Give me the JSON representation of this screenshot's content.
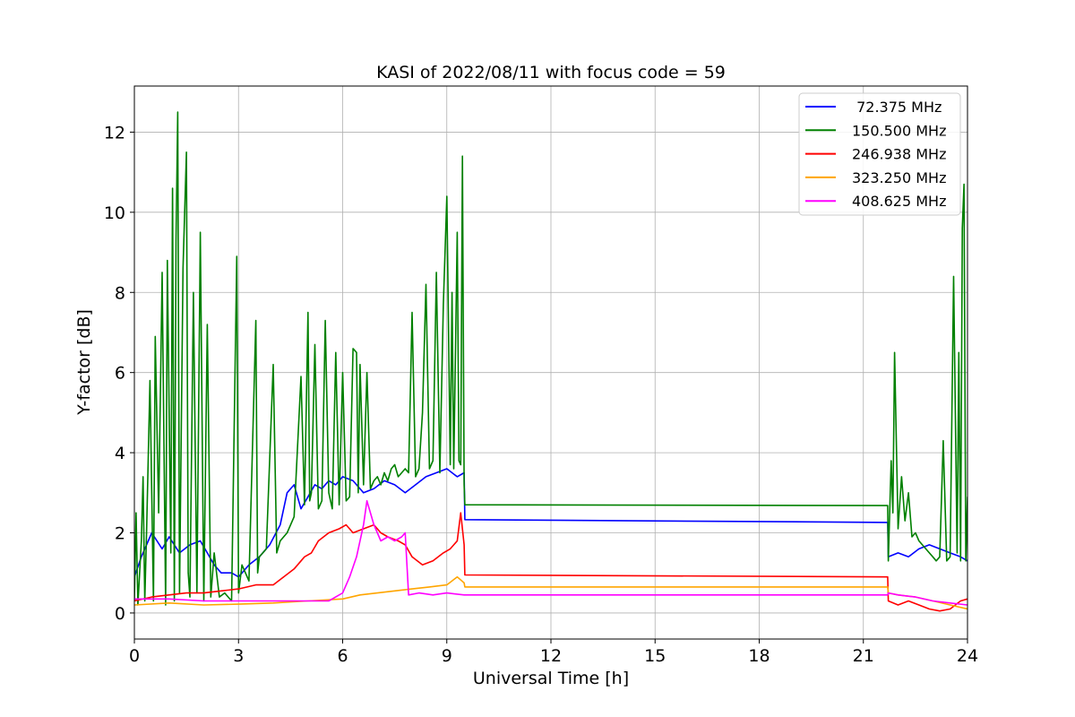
{
  "chart_data": {
    "type": "line",
    "title": "KASI of 2022/08/11 with focus code = 59",
    "xlabel": "Universal Time [h]",
    "ylabel": "Y-factor [dB]",
    "xlim": [
      0,
      24
    ],
    "ylim": [
      -0.65,
      13.15
    ],
    "xticks": [
      0,
      3,
      6,
      9,
      12,
      15,
      18,
      21,
      24
    ],
    "yticks": [
      0,
      2,
      4,
      6,
      8,
      10,
      12
    ],
    "grid": true,
    "legend_position": "top-right",
    "series": [
      {
        "name": "72.375 MHz",
        "legend_label": " 72.375 MHz",
        "color": "#0000ff",
        "x": [
          0,
          0.2,
          0.5,
          0.8,
          1.0,
          1.3,
          1.6,
          1.9,
          2.1,
          2.3,
          2.5,
          2.8,
          3.0,
          3.3,
          3.6,
          3.9,
          4.2,
          4.4,
          4.6,
          4.8,
          5.0,
          5.2,
          5.4,
          5.6,
          5.8,
          6.0,
          6.3,
          6.6,
          6.9,
          7.2,
          7.5,
          7.8,
          8.1,
          8.4,
          8.7,
          9.0,
          9.3,
          9.5,
          9.52,
          21.7,
          21.72,
          22.0,
          22.3,
          22.6,
          22.9,
          23.2,
          23.5,
          23.8,
          24.0
        ],
        "y": [
          0.9,
          1.4,
          2.0,
          1.6,
          1.9,
          1.5,
          1.7,
          1.8,
          1.5,
          1.2,
          1.0,
          1.0,
          0.9,
          1.2,
          1.4,
          1.7,
          2.2,
          3.0,
          3.2,
          2.6,
          2.9,
          3.2,
          3.1,
          3.3,
          3.2,
          3.4,
          3.3,
          3.0,
          3.1,
          3.3,
          3.2,
          3.0,
          3.2,
          3.4,
          3.5,
          3.6,
          3.4,
          3.5,
          2.33,
          2.26,
          1.4,
          1.5,
          1.4,
          1.6,
          1.7,
          1.6,
          1.5,
          1.4,
          1.3
        ]
      },
      {
        "name": "150.500 MHz",
        "legend_label": "150.500 MHz",
        "color": "#008000",
        "x": [
          0,
          0.05,
          0.1,
          0.2,
          0.25,
          0.3,
          0.35,
          0.45,
          0.55,
          0.6,
          0.7,
          0.8,
          0.9,
          0.95,
          1.05,
          1.1,
          1.15,
          1.2,
          1.25,
          1.3,
          1.4,
          1.5,
          1.55,
          1.6,
          1.7,
          1.8,
          1.9,
          2.0,
          2.1,
          2.2,
          2.3,
          2.45,
          2.6,
          2.8,
          2.95,
          3.0,
          3.1,
          3.3,
          3.5,
          3.55,
          3.6,
          3.8,
          4.0,
          4.1,
          4.2,
          4.4,
          4.6,
          4.8,
          4.9,
          5.0,
          5.05,
          5.1,
          5.2,
          5.3,
          5.4,
          5.5,
          5.6,
          5.7,
          5.8,
          5.9,
          6.0,
          6.1,
          6.2,
          6.3,
          6.4,
          6.45,
          6.5,
          6.6,
          6.7,
          6.8,
          6.9,
          7.0,
          7.1,
          7.2,
          7.3,
          7.4,
          7.5,
          7.6,
          7.7,
          7.8,
          7.9,
          8.0,
          8.1,
          8.2,
          8.3,
          8.4,
          8.5,
          8.6,
          8.7,
          8.8,
          8.9,
          9.0,
          9.1,
          9.15,
          9.2,
          9.3,
          9.35,
          9.4,
          9.45,
          9.5,
          9.52,
          21.7,
          21.72,
          21.8,
          21.85,
          21.9,
          22.0,
          22.1,
          22.2,
          22.3,
          22.4,
          22.5,
          22.6,
          22.7,
          22.8,
          22.9,
          23.0,
          23.1,
          23.2,
          23.3,
          23.4,
          23.5,
          23.6,
          23.7,
          23.75,
          23.8,
          23.85,
          23.9,
          23.95,
          24.0
        ],
        "y": [
          0.3,
          2.5,
          0.2,
          1.8,
          3.4,
          0.3,
          2.0,
          5.8,
          0.3,
          6.9,
          2.5,
          8.5,
          0.2,
          8.8,
          1.5,
          10.6,
          0.3,
          9.3,
          12.5,
          0.5,
          8.6,
          11.5,
          1.0,
          0.4,
          8.0,
          0.5,
          9.5,
          0.3,
          7.2,
          0.4,
          1.5,
          0.4,
          0.5,
          0.3,
          8.9,
          0.5,
          1.2,
          0.8,
          7.3,
          1.0,
          1.4,
          1.6,
          6.2,
          1.5,
          1.8,
          2.0,
          2.4,
          5.9,
          2.7,
          7.5,
          2.8,
          3.0,
          6.7,
          2.6,
          2.8,
          7.3,
          3.0,
          2.6,
          6.5,
          2.7,
          6.0,
          2.8,
          2.9,
          6.6,
          6.5,
          3.0,
          6.2,
          3.2,
          6.0,
          3.1,
          3.3,
          3.4,
          3.2,
          3.5,
          3.3,
          3.6,
          3.7,
          3.4,
          3.5,
          3.6,
          3.5,
          7.5,
          3.4,
          3.6,
          5.0,
          8.2,
          3.6,
          3.8,
          8.5,
          3.5,
          7.7,
          10.4,
          3.7,
          8.0,
          3.6,
          9.5,
          3.8,
          3.7,
          11.4,
          3.2,
          2.7,
          2.68,
          1.3,
          3.8,
          2.5,
          6.5,
          2.1,
          3.4,
          2.3,
          3.0,
          1.9,
          2.0,
          1.8,
          1.7,
          1.6,
          1.5,
          1.4,
          1.3,
          1.4,
          4.3,
          1.3,
          1.4,
          8.4,
          1.5,
          6.5,
          1.3,
          9.6,
          10.7,
          1.3,
          2.9
        ]
      },
      {
        "name": "246.938 MHz",
        "legend_label": "246.938 MHz",
        "color": "#ff0000",
        "x": [
          0,
          0.5,
          1.0,
          1.5,
          2.0,
          2.5,
          3.0,
          3.5,
          4.0,
          4.3,
          4.6,
          4.9,
          5.1,
          5.3,
          5.6,
          5.9,
          6.1,
          6.3,
          6.6,
          6.9,
          7.1,
          7.3,
          7.6,
          7.8,
          8.0,
          8.3,
          8.6,
          8.9,
          9.1,
          9.3,
          9.4,
          9.5,
          9.52,
          21.7,
          21.72,
          22.0,
          22.3,
          22.6,
          22.9,
          23.2,
          23.5,
          23.8,
          24.0
        ],
        "y": [
          0.3,
          0.4,
          0.45,
          0.5,
          0.5,
          0.55,
          0.6,
          0.7,
          0.7,
          0.9,
          1.1,
          1.4,
          1.5,
          1.8,
          2.0,
          2.1,
          2.2,
          2.0,
          2.1,
          2.2,
          2.0,
          1.9,
          1.8,
          1.7,
          1.4,
          1.2,
          1.3,
          1.5,
          1.6,
          1.8,
          2.5,
          1.7,
          0.95,
          0.9,
          0.3,
          0.2,
          0.3,
          0.2,
          0.1,
          0.05,
          0.1,
          0.3,
          0.35
        ]
      },
      {
        "name": "323.250 MHz",
        "legend_label": "323.250 MHz",
        "color": "#ffa500",
        "x": [
          0,
          1.0,
          2.0,
          3.0,
          4.0,
          5.0,
          6.0,
          6.5,
          7.0,
          7.5,
          8.0,
          8.5,
          9.0,
          9.3,
          9.5,
          9.52,
          21.7,
          21.72,
          22.0,
          22.5,
          23.0,
          23.5,
          24.0
        ],
        "y": [
          0.2,
          0.25,
          0.2,
          0.22,
          0.25,
          0.3,
          0.35,
          0.45,
          0.5,
          0.55,
          0.6,
          0.65,
          0.7,
          0.9,
          0.75,
          0.65,
          0.65,
          0.5,
          0.45,
          0.4,
          0.3,
          0.2,
          0.1
        ]
      },
      {
        "name": "408.625 MHz",
        "legend_label": "408.625 MHz",
        "color": "#ff00ff",
        "x": [
          0,
          1.0,
          2.0,
          3.0,
          4.0,
          5.0,
          5.6,
          6.0,
          6.2,
          6.4,
          6.6,
          6.7,
          6.9,
          7.1,
          7.3,
          7.5,
          7.7,
          7.8,
          7.9,
          8.2,
          8.6,
          9.0,
          9.5,
          9.52,
          21.7,
          21.72,
          22.0,
          22.5,
          23.0,
          23.5,
          24.0
        ],
        "y": [
          0.35,
          0.35,
          0.3,
          0.3,
          0.3,
          0.3,
          0.3,
          0.5,
          0.9,
          1.4,
          2.2,
          2.8,
          2.2,
          1.8,
          1.9,
          1.8,
          1.9,
          2.0,
          0.45,
          0.5,
          0.45,
          0.5,
          0.45,
          0.45,
          0.45,
          0.5,
          0.45,
          0.4,
          0.3,
          0.25,
          0.2
        ]
      }
    ]
  }
}
